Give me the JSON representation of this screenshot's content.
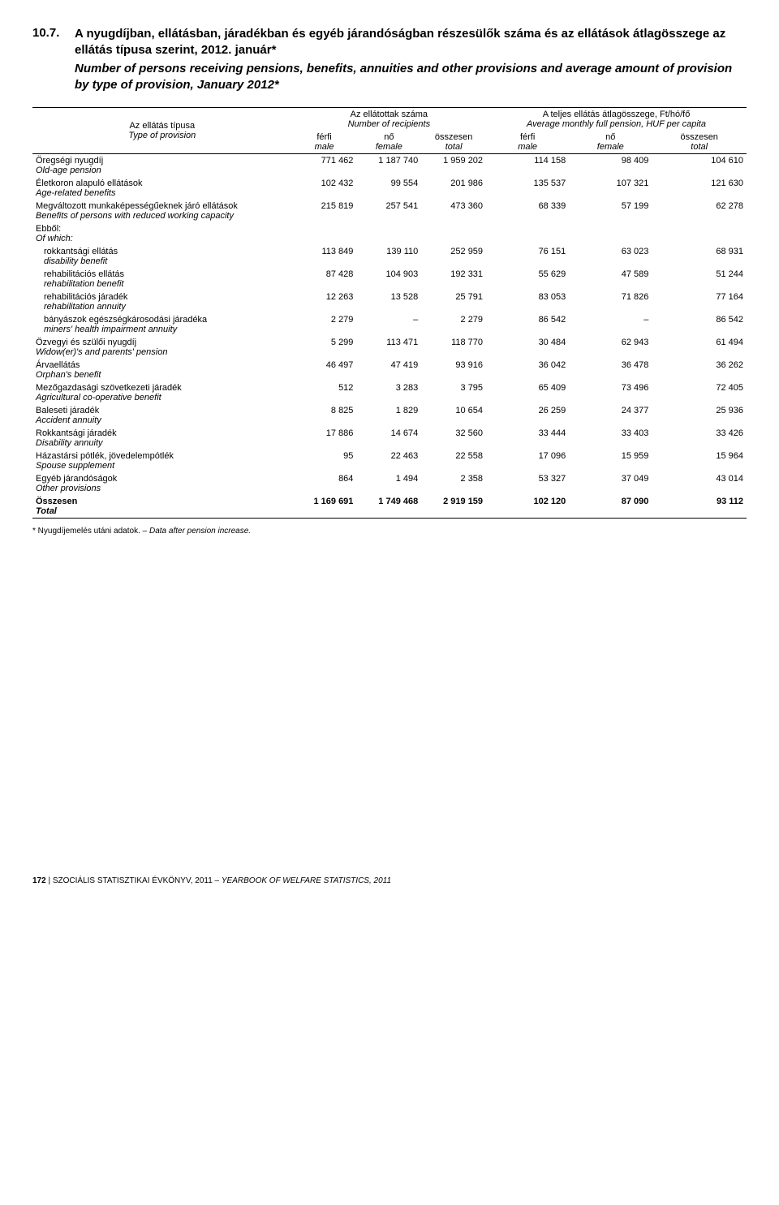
{
  "title": {
    "number": "10.7.",
    "hu": "A nyugdíjban, ellátásban, járadékban és egyéb járandóságban részesülők száma és az ellátások átlagösszege az ellátás típusa szerint, 2012. január*",
    "en": "Number of persons receiving pensions, benefits, annuities and other provisions and average amount of provision by type of provision, January 2012*"
  },
  "header": {
    "rowlabel_hu": "Az ellátás típusa",
    "rowlabel_en": "Type of provision",
    "group1_hu": "Az ellátottak száma",
    "group1_en": "Number of recipients",
    "group2_hu": "A teljes ellátás átlagösszege, Ft/hó/fő",
    "group2_en": "Average monthly full pension, HUF per capita",
    "col_ferfi": "férfi",
    "col_ferfi_en": "male",
    "col_no": "nő",
    "col_no_en": "female",
    "col_ossz": "összesen",
    "col_ossz_en": "total"
  },
  "rows": [
    {
      "hu": "Öregségi nyugdíj",
      "en": "Old-age pension",
      "v": [
        "771 462",
        "1 187 740",
        "1 959 202",
        "114 158",
        "98 409",
        "104 610"
      ]
    },
    {
      "hu": "Életkoron alapuló ellátások",
      "en": "Age-related benefits",
      "v": [
        "102 432",
        "99 554",
        "201 986",
        "135 537",
        "107 321",
        "121 630"
      ]
    },
    {
      "hu": "Megváltozott munkaképességűeknek járó ellátások",
      "en": "Benefits of persons with reduced working capacity",
      "v": [
        "215 819",
        "257 541",
        "473 360",
        "68 339",
        "57 199",
        "62 278"
      ]
    },
    {
      "hu": "Ebből:",
      "en": "Of which:",
      "v": [
        "",
        "",
        "",
        "",
        "",
        ""
      ]
    },
    {
      "hu": "rokkantsági ellátás",
      "en": "disability benefit",
      "v": [
        "113 849",
        "139 110",
        "252 959",
        "76 151",
        "63 023",
        "68 931"
      ],
      "indent": true
    },
    {
      "hu": "rehabilitációs ellátás",
      "en": "rehabilitation benefit",
      "v": [
        "87 428",
        "104 903",
        "192 331",
        "55 629",
        "47 589",
        "51 244"
      ],
      "indent": true
    },
    {
      "hu": "rehabilitációs járadék",
      "en": "rehabilitation annuity",
      "v": [
        "12 263",
        "13 528",
        "25 791",
        "83 053",
        "71 826",
        "77 164"
      ],
      "indent": true
    },
    {
      "hu": "bányászok egészségkárosodási járadéka",
      "en": "miners' health impairment annuity",
      "v": [
        "2 279",
        "–",
        "2 279",
        "86 542",
        "–",
        "86 542"
      ],
      "indent": true
    },
    {
      "hu": "Özvegyi és szülői nyugdíj",
      "en": "Widow(er)'s and parents' pension",
      "v": [
        "5 299",
        "113 471",
        "118 770",
        "30 484",
        "62 943",
        "61 494"
      ]
    },
    {
      "hu": "Árvaellátás",
      "en": "Orphan's benefit",
      "v": [
        "46 497",
        "47 419",
        "93 916",
        "36 042",
        "36 478",
        "36 262"
      ]
    },
    {
      "hu": "Mezőgazdasági szövetkezeti járadék",
      "en": "Agricultural co-operative benefit",
      "v": [
        "512",
        "3 283",
        "3 795",
        "65 409",
        "73 496",
        "72 405"
      ]
    },
    {
      "hu": "Baleseti járadék",
      "en": "Accident annuity",
      "v": [
        "8 825",
        "1 829",
        "10 654",
        "26 259",
        "24 377",
        "25 936"
      ]
    },
    {
      "hu": "Rokkantsági járadék",
      "en": "Disability annuity",
      "v": [
        "17 886",
        "14 674",
        "32 560",
        "33 444",
        "33 403",
        "33 426"
      ]
    },
    {
      "hu": "Házastársi pótlék, jövedelempótlék",
      "en": "Spouse supplement",
      "v": [
        "95",
        "22 463",
        "22 558",
        "17 096",
        "15 959",
        "15 964"
      ]
    },
    {
      "hu": "Egyéb járandóságok",
      "en": "Other provisions",
      "v": [
        "864",
        "1 494",
        "2 358",
        "53 327",
        "37 049",
        "43 014"
      ]
    }
  ],
  "total": {
    "hu": "Összesen",
    "en": "Total",
    "v": [
      "1 169 691",
      "1 749 468",
      "2 919 159",
      "102 120",
      "87 090",
      "93 112"
    ]
  },
  "footnote": {
    "hu": "* Nyugdíjemelés utáni adatok. – ",
    "en": "Data after pension increase."
  },
  "footer": {
    "page": "172",
    "sep": " | ",
    "hu": "SZOCIÁLIS STATISZTIKAI ÉVKÖNYV, 2011 – ",
    "en": "YEARBOOK OF WELFARE STATISTICS, 2011"
  }
}
